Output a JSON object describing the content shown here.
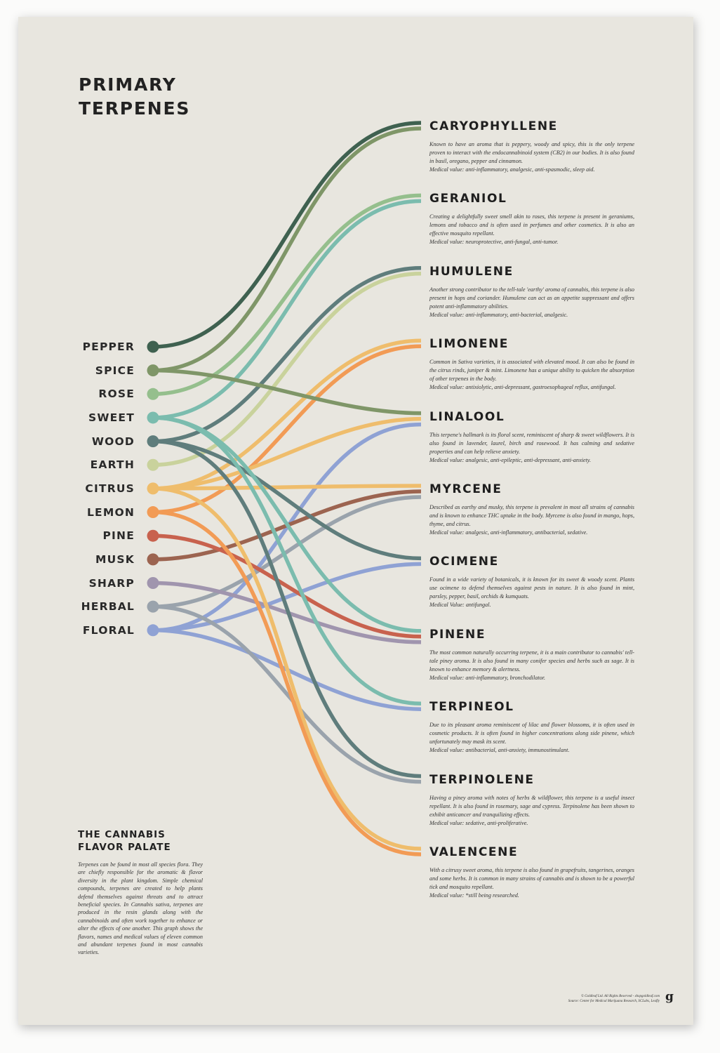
{
  "title": {
    "line1": "PRIMARY",
    "line2": "TERPENES"
  },
  "flavors": [
    {
      "name": "PEPPER",
      "color": "#3f6150"
    },
    {
      "name": "SPICE",
      "color": "#7f9668"
    },
    {
      "name": "ROSE",
      "color": "#95bf8d"
    },
    {
      "name": "SWEET",
      "color": "#7bbcae"
    },
    {
      "name": "WOOD",
      "color": "#5f7d7c"
    },
    {
      "name": "EARTH",
      "color": "#c9d29c"
    },
    {
      "name": "CITRUS",
      "color": "#efbd6c"
    },
    {
      "name": "LEMON",
      "color": "#f29b55"
    },
    {
      "name": "PINE",
      "color": "#c8624e"
    },
    {
      "name": "MUSK",
      "color": "#9c6450"
    },
    {
      "name": "SHARP",
      "color": "#a095ae"
    },
    {
      "name": "HERBAL",
      "color": "#9aa3ac"
    },
    {
      "name": "FLORAL",
      "color": "#8fa2d4"
    }
  ],
  "terpenes": [
    {
      "name": "CARYOPHYLLENE",
      "flavors": [
        "PEPPER",
        "SPICE"
      ],
      "desc": "Known to have an aroma that is peppery, woody and spicy, this is the only terpene proven to interact with the endocannabinoid system (CB2) in our bodies. It is also found in basil, oregano, pepper and cinnamon.",
      "medical": "Medical value: anti-inflammatory, analgesic, anti-spasmodic, sleep aid."
    },
    {
      "name": "GERANIOL",
      "flavors": [
        "ROSE",
        "SWEET"
      ],
      "desc": "Creating a delightfully sweet smell akin to roses, this terpene is present in geraniums, lemons and tobacco and is often used in perfumes and other cosmetics. It is also an effective mosquito repellant.",
      "medical": "Medical value: neuroprotective, anti-fungal, anti-tumor."
    },
    {
      "name": "HUMULENE",
      "flavors": [
        "WOOD",
        "EARTH"
      ],
      "desc": "Another strong contributor to the tell-tale 'earthy' aroma of cannabis, this terpene is also present in hops and coriander. Humulene can act as an appetite suppressant and offers potent anti-inflammatory abilities.",
      "medical": "Medical value: anti-inflammatory, anti-bacterial, analgesic."
    },
    {
      "name": "LIMONENE",
      "flavors": [
        "CITRUS",
        "LEMON"
      ],
      "desc": "Common in Sativa varieties, it is associated with elevated mood. It can also be found in the citrus rinds, juniper & mint. Limonene has a unique ability to quicken the absorption of other terpenes in the body.",
      "medical": "Medical value: antixiolytic, anti-depressant, gastroesophageal reflux, antifungal."
    },
    {
      "name": "LINALOOL",
      "flavors": [
        "SPICE",
        "CITRUS",
        "FLORAL"
      ],
      "desc": "This terpene's hallmark is its floral scent, reminiscent of sharp & sweet wildflowers. It is also found in lavender, laurel, birch and rosewood.  It has calming and sedative properties and can help relieve anxiety.",
      "medical": "Medical value: analgesic, anti-epileptic, anti-depressant, anti-anxiety."
    },
    {
      "name": "MYRCENE",
      "flavors": [
        "CITRUS",
        "MUSK",
        "HERBAL"
      ],
      "desc": "Described as earthy and musky, this terpene is prevalent in most all strains of cannabis and is known to enhance THC uptake in the body. Myrcene is also found in mango, hops, thyme, and citrus.",
      "medical": "Medical value: analgesic, anti-inflammatory, antibacterial, sedative."
    },
    {
      "name": "OCIMENE",
      "flavors": [
        "WOOD",
        "FLORAL"
      ],
      "desc": "Found in a wide variety of botanicals, it is known for its sweet & woody scent. Plants use ocimene to defend themselves against pests in nature. It is also found in mint, parsley, pepper, basil, orchids & kumquats.",
      "medical": "Medical Value: antifungal."
    },
    {
      "name": "PINENE",
      "flavors": [
        "SWEET",
        "PINE",
        "SHARP"
      ],
      "desc": "The most common naturally occurring terpene, it is a main contributor to cannabis' tell-tale piney aroma. It is also found in many conifer species and herbs such as sage. It is known to enhance memory & alertness.",
      "medical": "Medical value: anti-inflammatory, bronchodilator."
    },
    {
      "name": "TERPINEOL",
      "flavors": [
        "SWEET",
        "FLORAL"
      ],
      "desc": "Due to its pleasant aroma reminiscent of lilac and flower blossoms, it is often used in cosmetic products. It is often found in higher concentrations along side pinene, which unfortunately may mask its scent.",
      "medical": "Medical value: antibacterial, anti-anxiety, immunostimulant."
    },
    {
      "name": "TERPINOLENE",
      "flavors": [
        "WOOD",
        "HERBAL"
      ],
      "desc": "Having a piney aroma with notes of herbs & wildflower, this terpene is a useful insect repellant.  It is also found in rosemary, sage and cypress. Terpinolene has been shown to exhibit anticancer and tranquilizing effects.",
      "medical": "Medical value: sedative, anti-proliferative."
    },
    {
      "name": "VALENCENE",
      "flavors": [
        "CITRUS",
        "LEMON"
      ],
      "desc": "With a citrusy sweet aroma, this terpene is also found in grapefruits, tangerines, oranges and some herbs. It is common in many strains of cannabis and is shown to be a powerful tick and mosquito repellant.",
      "medical": "Medical value: *still being researched."
    }
  ],
  "palette": {
    "title": "THE CANNABIS\nFLAVOR PALATE",
    "text": "Terpenes can be found in most all species flora. They are chiefly responsible for the aromatic & flavor diversity in the plant kingdom.  Simple chemical compounds, terpenes are created to help plants defend themselves against threats and to attract beneficial species.  In Cannabis sativa, terpenes are produced in the resin glands along with the cannabinoids and often work together to enhance or alter the effects of one another. This graph shows the flavors, names and medical values of eleven common and abundant terpenes found in most cannabis varieties."
  },
  "credits": {
    "line1": "© Goldleaf Ltd. All Rights Reserved - shopgoldleaf.com",
    "line2": "Source: Center for Medical Marijuana Research, SCLabs, Leafly",
    "logo": "g"
  }
}
